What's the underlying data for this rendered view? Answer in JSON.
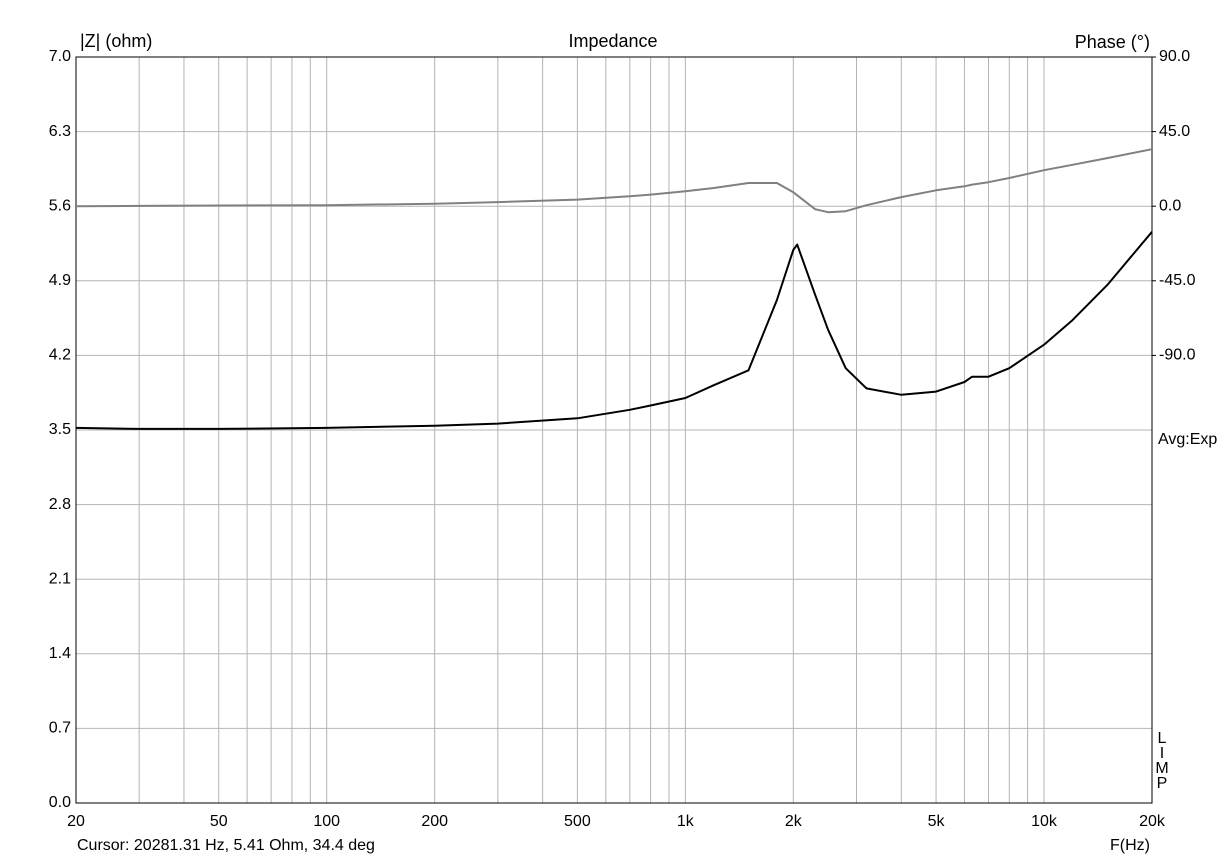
{
  "chart_data": {
    "type": "line",
    "title": "Impedance",
    "ylabel": "|Z| (ohm)",
    "y2label": "Phase (°)",
    "xlabel": "F(Hz)",
    "cursor": "Cursor: 20281.31 Hz, 5.41 Ohm, 34.4 deg",
    "averaging": "Avg:Exp",
    "program": "LIMP",
    "xscale": "log",
    "grid": true,
    "xlim": [
      20,
      20000
    ],
    "xticks": [
      20,
      50,
      100,
      200,
      500,
      {
        "value": 1000,
        "label": "1k"
      },
      {
        "value": 2000,
        "label": "2k"
      },
      {
        "value": 5000,
        "label": "5k"
      },
      {
        "value": 10000,
        "label": "10k"
      },
      {
        "value": 20000,
        "label": "20k"
      }
    ],
    "xgrid": [
      30,
      40,
      60,
      70,
      80,
      90,
      300,
      400,
      600,
      700,
      800,
      900,
      3000,
      4000,
      6000,
      7000,
      8000,
      9000
    ],
    "ylim": [
      0,
      7
    ],
    "yticks": [
      {
        "value": 0,
        "label": "0.0"
      },
      0.7,
      1.4,
      2.1,
      2.8,
      3.5,
      4.2,
      4.9,
      5.6,
      6.3,
      {
        "value": 7,
        "label": "7.0"
      }
    ],
    "y2lim": [
      -360,
      90
    ],
    "y2ticks": [
      {
        "value": 90,
        "label": "90.0"
      },
      {
        "value": 45,
        "label": "45.0"
      },
      {
        "value": 0,
        "label": "0.0"
      },
      {
        "value": -45,
        "label": "-45.0"
      },
      {
        "value": -90,
        "label": "-90.0"
      }
    ],
    "x": [
      20,
      30,
      50,
      100,
      200,
      300,
      500,
      700,
      800,
      1000,
      1200,
      1500,
      1800,
      2000,
      2050,
      2300,
      2500,
      2800,
      3200,
      4000,
      5000,
      6000,
      6300,
      7000,
      8000,
      10000,
      12000,
      15000,
      20000
    ],
    "series": [
      {
        "color": "#000000",
        "values": [
          3.52,
          3.51,
          3.51,
          3.52,
          3.54,
          3.56,
          3.61,
          3.69,
          3.73,
          3.8,
          3.92,
          4.06,
          4.72,
          5.19,
          5.24,
          4.77,
          4.44,
          4.08,
          3.89,
          3.83,
          3.86,
          3.95,
          4.0,
          4.0,
          4.08,
          4.3,
          4.53,
          4.86,
          5.36
        ]
      },
      {
        "color": "#808080",
        "axis": "y2",
        "values": [
          0,
          0.2,
          0.4,
          0.6,
          1.5,
          2.5,
          4,
          6,
          7,
          9,
          11,
          14,
          14,
          8.4,
          6.6,
          -1.8,
          -3.6,
          -3,
          0.6,
          5.5,
          9.6,
          12,
          13,
          14.5,
          17,
          21.7,
          25,
          29,
          34.4
        ]
      }
    ]
  }
}
